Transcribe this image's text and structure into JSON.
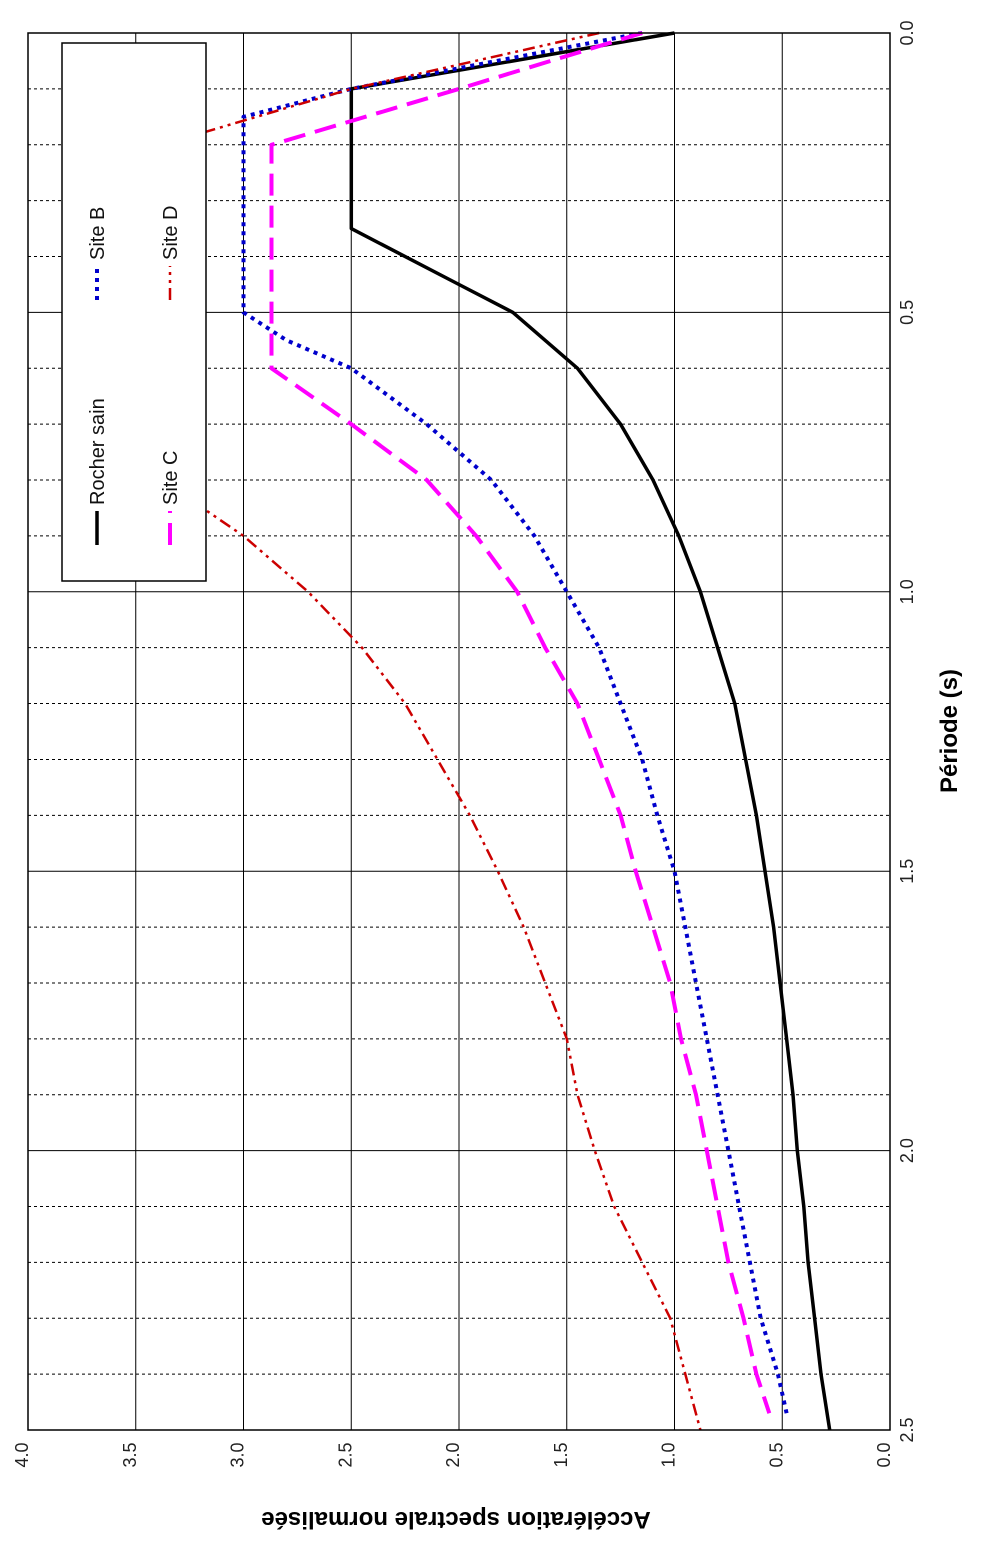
{
  "chart_data": {
    "type": "line",
    "xlabel": "Période (s)",
    "ylabel": "Accélération spectrale normalisée",
    "xlim": [
      0,
      2.5
    ],
    "ylim": [
      0,
      4.0
    ],
    "x_major_ticks": [
      "0.0",
      "0.5",
      "1.0",
      "1.5",
      "2.0",
      "2.5"
    ],
    "y_ticks": [
      "0.0",
      "0.5",
      "1.0",
      "1.5",
      "2.0",
      "2.5",
      "3.0",
      "3.5",
      "4.0"
    ],
    "grid": true,
    "orientation": "rotated-90-clockwise",
    "legend_position": "top-right",
    "series": [
      {
        "name": "Rocher sain",
        "color": "#000000",
        "style": "solid",
        "points": [
          [
            0,
            1.0
          ],
          [
            0.1,
            2.5
          ],
          [
            0.15,
            2.5
          ],
          [
            0.2,
            2.5
          ],
          [
            0.3,
            2.5
          ],
          [
            0.35,
            2.5
          ],
          [
            0.45,
            2.0
          ],
          [
            0.5,
            1.75
          ],
          [
            0.6,
            1.45
          ],
          [
            0.7,
            1.25
          ],
          [
            0.8,
            1.1
          ],
          [
            0.9,
            0.98
          ],
          [
            1.0,
            0.88
          ],
          [
            1.1,
            0.8
          ],
          [
            1.2,
            0.72
          ],
          [
            1.3,
            0.67
          ],
          [
            1.4,
            0.62
          ],
          [
            1.5,
            0.58
          ],
          [
            1.6,
            0.54
          ],
          [
            1.7,
            0.51
          ],
          [
            1.8,
            0.48
          ],
          [
            1.9,
            0.45
          ],
          [
            2.0,
            0.43
          ],
          [
            2.1,
            0.4
          ],
          [
            2.2,
            0.38
          ],
          [
            2.3,
            0.35
          ],
          [
            2.4,
            0.32
          ],
          [
            2.5,
            0.28
          ]
        ]
      },
      {
        "name": "Site B",
        "color": "#0000cc",
        "style": "dotted",
        "points": [
          [
            0,
            1.15
          ],
          [
            0.1,
            2.5
          ],
          [
            0.15,
            3.0
          ],
          [
            0.2,
            3.0
          ],
          [
            0.3,
            3.0
          ],
          [
            0.4,
            3.0
          ],
          [
            0.5,
            3.0
          ],
          [
            0.55,
            2.8
          ],
          [
            0.6,
            2.5
          ],
          [
            0.7,
            2.15
          ],
          [
            0.8,
            1.85
          ],
          [
            0.9,
            1.65
          ],
          [
            1.0,
            1.5
          ],
          [
            1.1,
            1.35
          ],
          [
            1.2,
            1.25
          ],
          [
            1.3,
            1.15
          ],
          [
            1.4,
            1.08
          ],
          [
            1.5,
            1.0
          ],
          [
            1.6,
            0.95
          ],
          [
            1.7,
            0.9
          ],
          [
            1.8,
            0.85
          ],
          [
            1.9,
            0.8
          ],
          [
            2.0,
            0.75
          ],
          [
            2.1,
            0.7
          ],
          [
            2.2,
            0.65
          ],
          [
            2.3,
            0.6
          ],
          [
            2.4,
            0.52
          ],
          [
            2.47,
            0.48
          ]
        ]
      },
      {
        "name": "Site C",
        "color": "#ff00ff",
        "style": "dashed",
        "points": [
          [
            0,
            1.15
          ],
          [
            0.1,
            2.0
          ],
          [
            0.2,
            2.87
          ],
          [
            0.3,
            2.87
          ],
          [
            0.4,
            2.87
          ],
          [
            0.5,
            2.87
          ],
          [
            0.6,
            2.87
          ],
          [
            0.7,
            2.5
          ],
          [
            0.8,
            2.15
          ],
          [
            0.9,
            1.92
          ],
          [
            1.0,
            1.73
          ],
          [
            1.1,
            1.6
          ],
          [
            1.2,
            1.45
          ],
          [
            1.3,
            1.35
          ],
          [
            1.4,
            1.25
          ],
          [
            1.5,
            1.18
          ],
          [
            1.6,
            1.1
          ],
          [
            1.7,
            1.02
          ],
          [
            1.8,
            0.97
          ],
          [
            1.9,
            0.9
          ],
          [
            2.0,
            0.85
          ],
          [
            2.1,
            0.8
          ],
          [
            2.2,
            0.75
          ],
          [
            2.3,
            0.68
          ],
          [
            2.4,
            0.62
          ],
          [
            2.47,
            0.56
          ]
        ]
      },
      {
        "name": "Site D",
        "color": "#cc0000",
        "style": "dash-dot-dot",
        "points": [
          [
            0,
            1.35
          ],
          [
            0.1,
            2.5
          ],
          [
            0.2,
            3.38
          ],
          [
            0.4,
            3.38
          ],
          [
            0.6,
            3.38
          ],
          [
            0.8,
            3.38
          ],
          [
            0.9,
            3.0
          ],
          [
            1.0,
            2.7
          ],
          [
            1.1,
            2.45
          ],
          [
            1.2,
            2.25
          ],
          [
            1.3,
            2.1
          ],
          [
            1.4,
            1.95
          ],
          [
            1.5,
            1.82
          ],
          [
            1.6,
            1.7
          ],
          [
            1.7,
            1.6
          ],
          [
            1.8,
            1.5
          ],
          [
            1.9,
            1.45
          ],
          [
            2.0,
            1.37
          ],
          [
            2.1,
            1.28
          ],
          [
            2.2,
            1.15
          ],
          [
            2.3,
            1.02
          ],
          [
            2.4,
            0.95
          ],
          [
            2.5,
            0.88
          ]
        ]
      }
    ]
  }
}
